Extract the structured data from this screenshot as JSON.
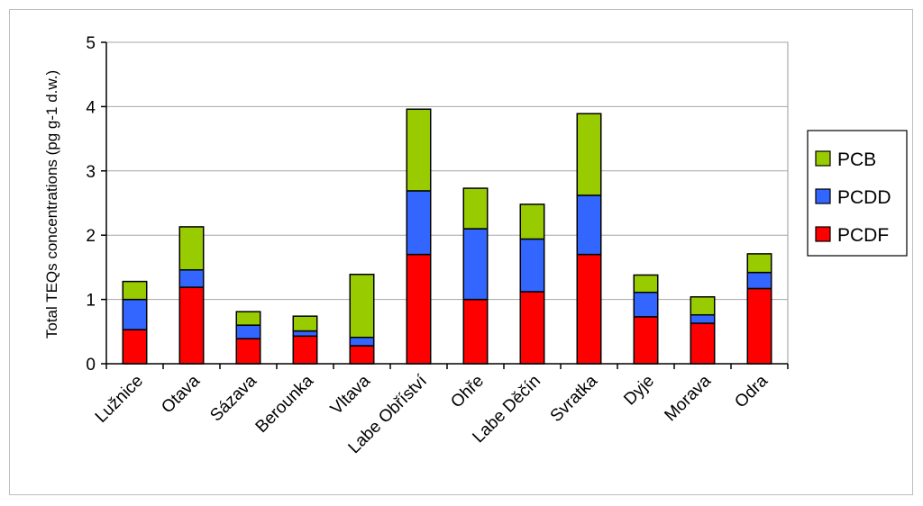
{
  "chart_data": {
    "type": "bar",
    "stacked": true,
    "title": "",
    "xlabel": "",
    "ylabel": "Total TEQs concentrations (pg g-1 d.w.)",
    "ylim": [
      0,
      5
    ],
    "yticks": [
      0,
      1,
      2,
      3,
      4,
      5
    ],
    "grid": true,
    "legend_position": "right",
    "categories": [
      "Lužnice",
      "Otava",
      "Sázava",
      "Berounka",
      "Vltava",
      "Labe Obříství",
      "Ohře",
      "Labe Děčín",
      "Svratka",
      "Dyje",
      "Morava",
      "Odra"
    ],
    "series": [
      {
        "name": "PCDF",
        "color": "#ff0000",
        "values": [
          0.53,
          1.19,
          0.39,
          0.43,
          0.28,
          1.7,
          1.0,
          1.12,
          1.7,
          0.73,
          0.63,
          1.17
        ]
      },
      {
        "name": "PCDD",
        "color": "#3366ff",
        "values": [
          0.47,
          0.27,
          0.21,
          0.08,
          0.13,
          0.99,
          1.1,
          0.82,
          0.92,
          0.38,
          0.13,
          0.25
        ]
      },
      {
        "name": "PCB",
        "color": "#99cc00",
        "values": [
          0.28,
          0.67,
          0.21,
          0.23,
          0.98,
          1.27,
          0.63,
          0.54,
          1.27,
          0.27,
          0.28,
          0.29
        ]
      }
    ],
    "legend_order": [
      "PCB",
      "PCDD",
      "PCDF"
    ]
  }
}
